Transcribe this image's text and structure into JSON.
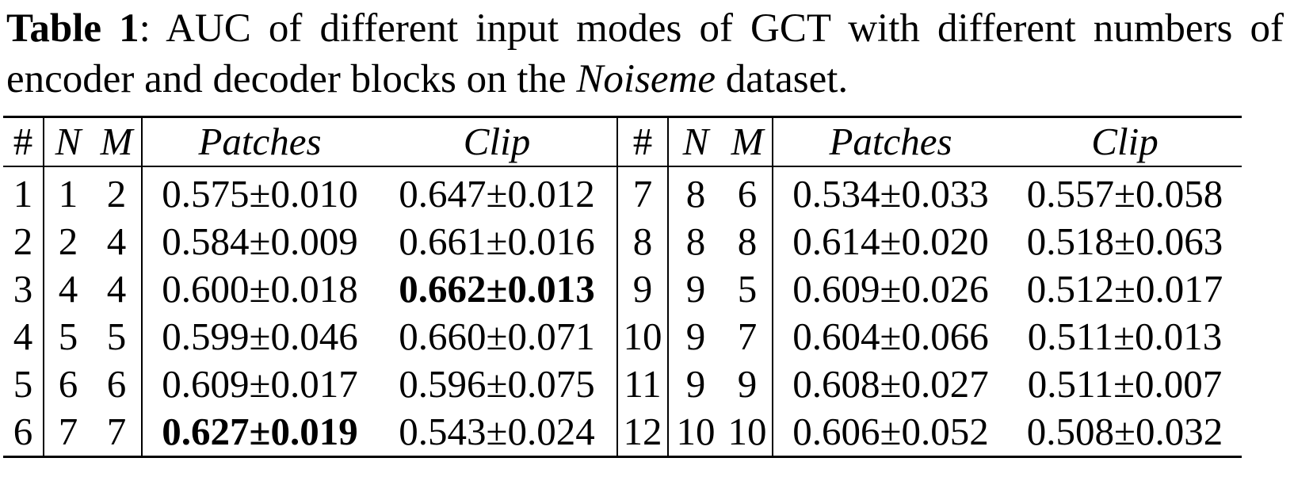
{
  "caption": {
    "label": "Table 1",
    "text_before": ": AUC of different input modes of GCT with different numbers of encoder and decoder blocks on the ",
    "dataset": "Noiseme",
    "text_after": " dataset."
  },
  "table": {
    "headers": [
      "#",
      "N",
      "M",
      "Patches",
      "Clip",
      "#",
      "N",
      "M",
      "Patches",
      "Clip"
    ],
    "rows": [
      {
        "idx": "1",
        "n": "1",
        "m": "2",
        "patches": "0.575±0.010",
        "clip": "0.647±0.012",
        "idx2": "7",
        "n2": "8",
        "m2": "6",
        "patches2": "0.534±0.033",
        "clip2": "0.557±0.058"
      },
      {
        "idx": "2",
        "n": "2",
        "m": "4",
        "patches": "0.584±0.009",
        "clip": "0.661±0.016",
        "idx2": "8",
        "n2": "8",
        "m2": "8",
        "patches2": "0.614±0.020",
        "clip2": "0.518±0.063"
      },
      {
        "idx": "3",
        "n": "4",
        "m": "4",
        "patches": "0.600±0.018",
        "clip": "0.662±0.013",
        "idx2": "9",
        "n2": "9",
        "m2": "5",
        "patches2": "0.609±0.026",
        "clip2": "0.512±0.017"
      },
      {
        "idx": "4",
        "n": "5",
        "m": "5",
        "patches": "0.599±0.046",
        "clip": "0.660±0.071",
        "idx2": "10",
        "n2": "9",
        "m2": "7",
        "patches2": "0.604±0.066",
        "clip2": "0.511±0.013"
      },
      {
        "idx": "5",
        "n": "6",
        "m": "6",
        "patches": "0.609±0.017",
        "clip": "0.596±0.075",
        "idx2": "11",
        "n2": "9",
        "m2": "9",
        "patches2": "0.608±0.027",
        "clip2": "0.511±0.007"
      },
      {
        "idx": "6",
        "n": "7",
        "m": "7",
        "patches": "0.627±0.019",
        "clip": "0.543±0.024",
        "idx2": "12",
        "n2": "10",
        "m2": "10",
        "patches2": "0.606±0.052",
        "clip2": "0.508±0.032"
      }
    ],
    "bold_cells": [
      "2.clip",
      "5.patches"
    ]
  }
}
